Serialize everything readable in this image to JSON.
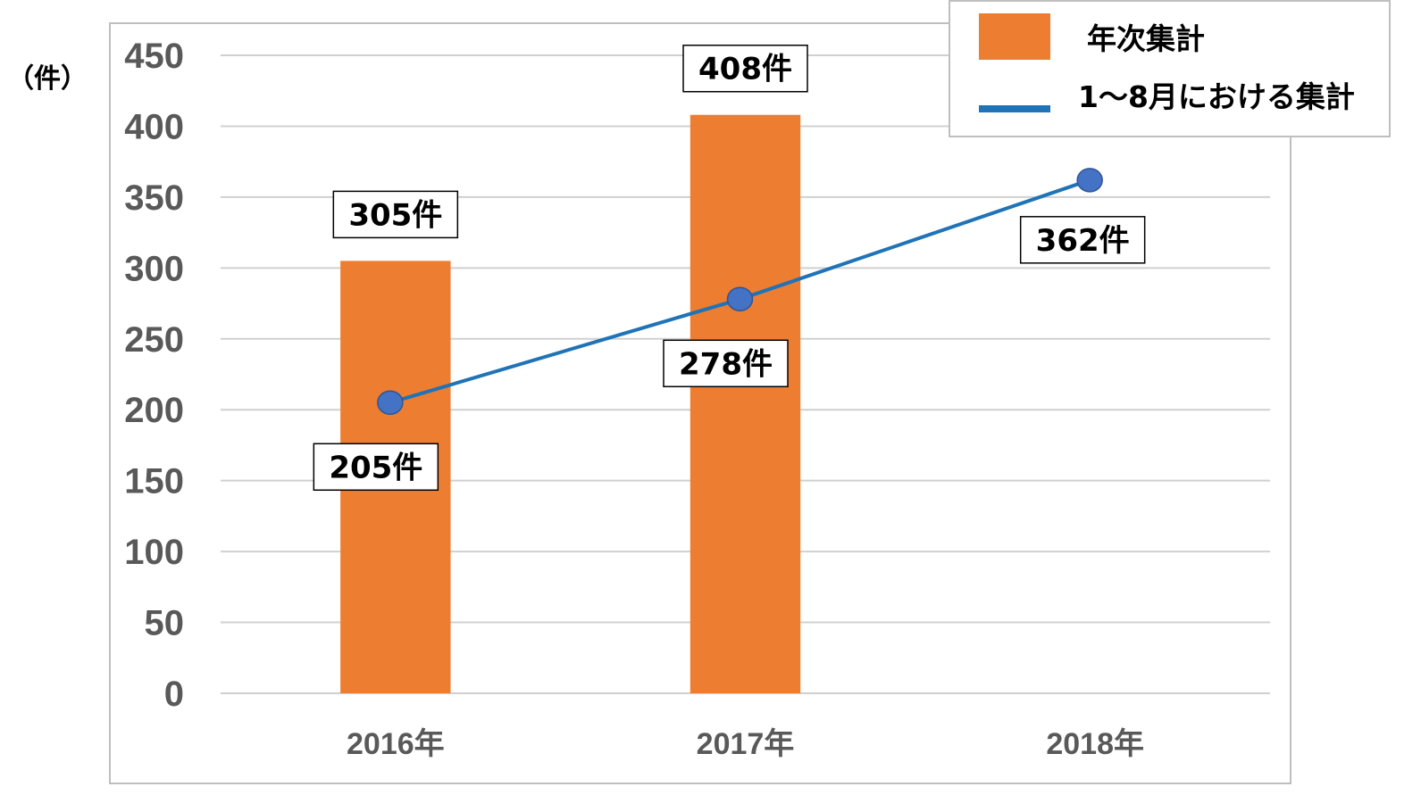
{
  "chart_data": {
    "type": "bar",
    "unit_label": "（件）",
    "categories": [
      "2016年",
      "2017年",
      "2018年"
    ],
    "ylim": [
      0,
      450
    ],
    "yticks": [
      0,
      50,
      100,
      150,
      200,
      250,
      300,
      350,
      400,
      450
    ],
    "grid": true,
    "legend_position": "top-right",
    "series": [
      {
        "name": "年次集計",
        "kind": "bar",
        "color": "#ED7D31",
        "values": [
          305,
          408,
          null
        ],
        "labels": [
          "305件",
          "408件",
          ""
        ]
      },
      {
        "name": "1～8月における集計",
        "kind": "line",
        "color": "#1F73B7",
        "marker_color": "#4472C4",
        "values": [
          205,
          278,
          362
        ],
        "labels": [
          "205件",
          "278件",
          "362件"
        ]
      }
    ]
  }
}
